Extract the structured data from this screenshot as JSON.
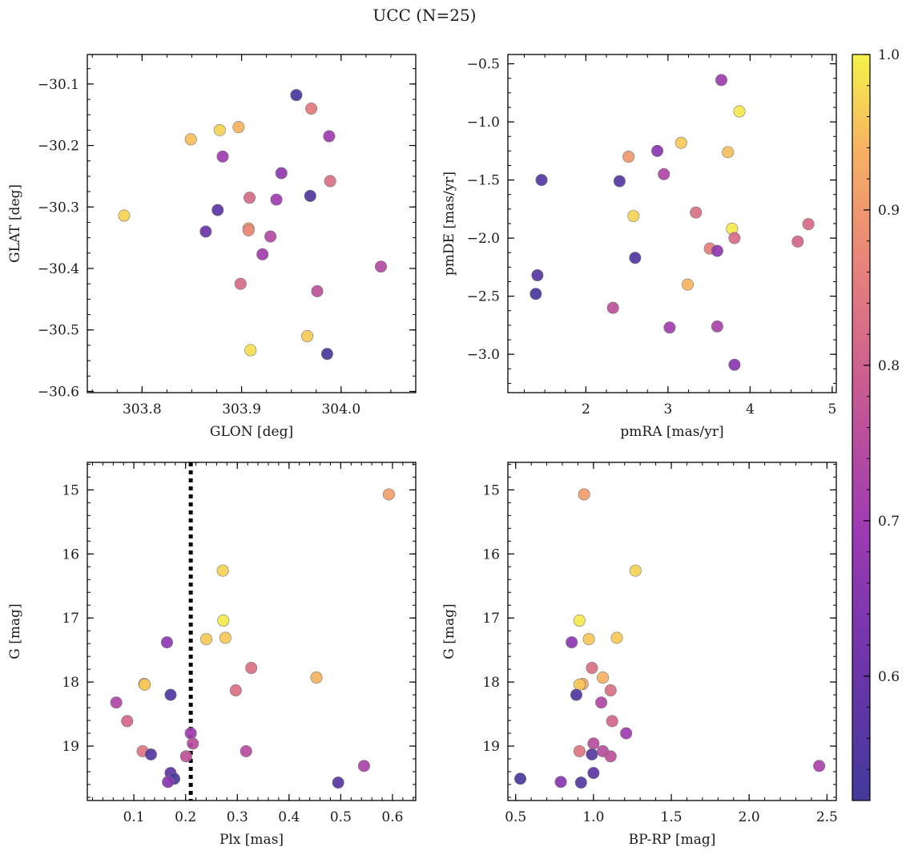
{
  "figure": {
    "title": "UCC (N=25)"
  },
  "colorbar": {
    "vmin": 0.52,
    "vmax": 1.0,
    "ticks": [
      0.6,
      0.7,
      0.8,
      0.9,
      1.0
    ],
    "tick_labels": [
      "0.6",
      "0.7",
      "0.8",
      "0.9",
      "1.0"
    ],
    "colormap": "plasma"
  },
  "chart_data": [
    {
      "type": "scatter",
      "xlabel": "GLON [deg]",
      "ylabel": "GLAT [deg]",
      "xlim": [
        303.745,
        304.075
      ],
      "ylim": [
        -30.602,
        -30.052
      ],
      "y_inverted": false,
      "xticks": [
        303.8,
        303.9,
        304.0
      ],
      "xtick_labels": [
        "303.8",
        "303.9",
        "304.0"
      ],
      "yticks": [
        -30.1,
        -30.2,
        -30.3,
        -30.4,
        -30.5,
        -30.6
      ],
      "ytick_labels": [
        "−30.1",
        "−30.2",
        "−30.3",
        "−30.4",
        "−30.5",
        "−30.6"
      ],
      "x_minor": 0.025,
      "y_minor": 0.025,
      "points": [
        {
          "x": 303.955,
          "y": -30.118,
          "c": 0.53
        },
        {
          "x": 303.97,
          "y": -30.14,
          "c": 0.85
        },
        {
          "x": 303.878,
          "y": -30.175,
          "c": 0.97
        },
        {
          "x": 303.897,
          "y": -30.17,
          "c": 0.94
        },
        {
          "x": 303.849,
          "y": -30.19,
          "c": 0.95
        },
        {
          "x": 303.988,
          "y": -30.185,
          "c": 0.7
        },
        {
          "x": 303.881,
          "y": -30.218,
          "c": 0.7
        },
        {
          "x": 303.94,
          "y": -30.245,
          "c": 0.67
        },
        {
          "x": 303.989,
          "y": -30.258,
          "c": 0.83
        },
        {
          "x": 303.908,
          "y": -30.285,
          "c": 0.82
        },
        {
          "x": 303.935,
          "y": -30.288,
          "c": 0.7
        },
        {
          "x": 303.969,
          "y": -30.282,
          "c": 0.55
        },
        {
          "x": 303.876,
          "y": -30.305,
          "c": 0.57
        },
        {
          "x": 303.782,
          "y": -30.314,
          "c": 0.97
        },
        {
          "x": 303.864,
          "y": -30.34,
          "c": 0.6
        },
        {
          "x": 303.907,
          "y": -30.335,
          "c": 0.9
        },
        {
          "x": 303.907,
          "y": -30.338,
          "c": 0.88
        },
        {
          "x": 303.929,
          "y": -30.348,
          "c": 0.74
        },
        {
          "x": 303.921,
          "y": -30.377,
          "c": 0.71
        },
        {
          "x": 304.04,
          "y": -30.397,
          "c": 0.74
        },
        {
          "x": 303.899,
          "y": -30.425,
          "c": 0.82
        },
        {
          "x": 303.976,
          "y": -30.437,
          "c": 0.76
        },
        {
          "x": 303.966,
          "y": -30.51,
          "c": 0.96
        },
        {
          "x": 303.909,
          "y": -30.533,
          "c": 0.98
        },
        {
          "x": 303.986,
          "y": -30.539,
          "c": 0.54
        }
      ]
    },
    {
      "type": "scatter",
      "xlabel": "pmRA [mas/yr]",
      "ylabel": "pmDE [mas/yr]",
      "xlim": [
        1.05,
        5.05
      ],
      "ylim": [
        -3.33,
        -0.42
      ],
      "y_inverted": false,
      "xticks": [
        2,
        3,
        4,
        5
      ],
      "xtick_labels": [
        "2",
        "3",
        "4",
        "5"
      ],
      "yticks": [
        -0.5,
        -1.0,
        -1.5,
        -2.0,
        -2.5,
        -3.0
      ],
      "ytick_labels": [
        "−0.5",
        "−1.0",
        "−1.5",
        "−2.0",
        "−2.5",
        "−3.0"
      ],
      "x_minor": 0.25,
      "y_minor": 0.125,
      "points": [
        {
          "x": 3.65,
          "y": -0.64,
          "c": 0.7
        },
        {
          "x": 3.87,
          "y": -0.91,
          "c": 0.99
        },
        {
          "x": 3.16,
          "y": -1.18,
          "c": 0.96
        },
        {
          "x": 3.73,
          "y": -1.26,
          "c": 0.95
        },
        {
          "x": 2.87,
          "y": -1.25,
          "c": 0.66
        },
        {
          "x": 2.52,
          "y": -1.3,
          "c": 0.9
        },
        {
          "x": 2.95,
          "y": -1.45,
          "c": 0.73
        },
        {
          "x": 1.46,
          "y": -1.5,
          "c": 0.56
        },
        {
          "x": 2.41,
          "y": -1.51,
          "c": 0.56
        },
        {
          "x": 3.34,
          "y": -1.78,
          "c": 0.83
        },
        {
          "x": 2.58,
          "y": -1.81,
          "c": 0.97
        },
        {
          "x": 4.71,
          "y": -1.88,
          "c": 0.82
        },
        {
          "x": 3.78,
          "y": -1.92,
          "c": 0.99
        },
        {
          "x": 3.81,
          "y": -2.0,
          "c": 0.82
        },
        {
          "x": 4.58,
          "y": -2.03,
          "c": 0.81
        },
        {
          "x": 3.51,
          "y": -2.09,
          "c": 0.86
        },
        {
          "x": 3.6,
          "y": -2.11,
          "c": 0.67
        },
        {
          "x": 2.6,
          "y": -2.17,
          "c": 0.55
        },
        {
          "x": 1.41,
          "y": -2.32,
          "c": 0.56
        },
        {
          "x": 3.24,
          "y": -2.4,
          "c": 0.94
        },
        {
          "x": 1.39,
          "y": -2.48,
          "c": 0.53
        },
        {
          "x": 2.33,
          "y": -2.6,
          "c": 0.76
        },
        {
          "x": 3.02,
          "y": -2.77,
          "c": 0.71
        },
        {
          "x": 3.6,
          "y": -2.76,
          "c": 0.72
        },
        {
          "x": 3.81,
          "y": -3.09,
          "c": 0.66
        }
      ]
    },
    {
      "type": "scatter",
      "xlabel": "Plx [mas]",
      "ylabel": "G [mag]",
      "xlim": [
        0.01,
        0.645
      ],
      "ylim": [
        19.85,
        14.57
      ],
      "y_inverted": true,
      "xticks": [
        0.1,
        0.2,
        0.3,
        0.4,
        0.5,
        0.6
      ],
      "xtick_labels": [
        "0.1",
        "0.2",
        "0.3",
        "0.4",
        "0.5",
        "0.6"
      ],
      "yticks": [
        15,
        16,
        17,
        18,
        19
      ],
      "ytick_labels": [
        "15",
        "16",
        "17",
        "18",
        "19"
      ],
      "x_minor": 0.02,
      "y_minor": 0.2,
      "vline": 0.21,
      "points": [
        {
          "x": 0.593,
          "y": 15.07,
          "c": 0.91
        },
        {
          "x": 0.272,
          "y": 16.26,
          "c": 0.97
        },
        {
          "x": 0.273,
          "y": 17.04,
          "c": 0.99
        },
        {
          "x": 0.24,
          "y": 17.33,
          "c": 0.96
        },
        {
          "x": 0.277,
          "y": 17.31,
          "c": 0.96
        },
        {
          "x": 0.164,
          "y": 17.38,
          "c": 0.67
        },
        {
          "x": 0.327,
          "y": 17.78,
          "c": 0.83
        },
        {
          "x": 0.453,
          "y": 17.93,
          "c": 0.94
        },
        {
          "x": 0.12,
          "y": 18.03,
          "c": 0.92
        },
        {
          "x": 0.121,
          "y": 18.04,
          "c": 0.96
        },
        {
          "x": 0.297,
          "y": 18.13,
          "c": 0.83
        },
        {
          "x": 0.171,
          "y": 18.2,
          "c": 0.55
        },
        {
          "x": 0.066,
          "y": 18.32,
          "c": 0.73
        },
        {
          "x": 0.087,
          "y": 18.61,
          "c": 0.81
        },
        {
          "x": 0.21,
          "y": 18.8,
          "c": 0.7
        },
        {
          "x": 0.214,
          "y": 18.96,
          "c": 0.75
        },
        {
          "x": 0.117,
          "y": 19.08,
          "c": 0.84
        },
        {
          "x": 0.317,
          "y": 19.08,
          "c": 0.75
        },
        {
          "x": 0.133,
          "y": 19.13,
          "c": 0.56
        },
        {
          "x": 0.201,
          "y": 19.16,
          "c": 0.76
        },
        {
          "x": 0.545,
          "y": 19.31,
          "c": 0.72
        },
        {
          "x": 0.171,
          "y": 19.42,
          "c": 0.57
        },
        {
          "x": 0.178,
          "y": 19.51,
          "c": 0.54
        },
        {
          "x": 0.166,
          "y": 19.56,
          "c": 0.66
        },
        {
          "x": 0.495,
          "y": 19.57,
          "c": 0.56
        }
      ]
    },
    {
      "type": "scatter",
      "xlabel": "BP-RP [mag]",
      "ylabel": "G [mag]",
      "xlim": [
        0.45,
        2.56
      ],
      "ylim": [
        19.85,
        14.57
      ],
      "y_inverted": true,
      "xticks": [
        0.5,
        1.0,
        1.5,
        2.0,
        2.5
      ],
      "xtick_labels": [
        "0.5",
        "1.0",
        "1.5",
        "2.0",
        "2.5"
      ],
      "yticks": [
        15,
        16,
        17,
        18,
        19
      ],
      "ytick_labels": [
        "15",
        "16",
        "17",
        "18",
        "19"
      ],
      "x_minor": 0.1,
      "y_minor": 0.2,
      "points": [
        {
          "x": 0.94,
          "y": 15.07,
          "c": 0.91
        },
        {
          "x": 1.27,
          "y": 16.26,
          "c": 0.97
        },
        {
          "x": 0.91,
          "y": 17.04,
          "c": 0.99
        },
        {
          "x": 0.97,
          "y": 17.33,
          "c": 0.96
        },
        {
          "x": 1.15,
          "y": 17.31,
          "c": 0.96
        },
        {
          "x": 0.86,
          "y": 17.38,
          "c": 0.67
        },
        {
          "x": 0.99,
          "y": 17.78,
          "c": 0.83
        },
        {
          "x": 1.06,
          "y": 17.93,
          "c": 0.94
        },
        {
          "x": 0.93,
          "y": 18.03,
          "c": 0.92
        },
        {
          "x": 0.91,
          "y": 18.04,
          "c": 0.96
        },
        {
          "x": 1.11,
          "y": 18.13,
          "c": 0.83
        },
        {
          "x": 0.89,
          "y": 18.2,
          "c": 0.55
        },
        {
          "x": 1.05,
          "y": 18.32,
          "c": 0.73
        },
        {
          "x": 1.12,
          "y": 18.61,
          "c": 0.81
        },
        {
          "x": 1.21,
          "y": 18.8,
          "c": 0.7
        },
        {
          "x": 1.0,
          "y": 18.96,
          "c": 0.75
        },
        {
          "x": 0.91,
          "y": 19.08,
          "c": 0.84
        },
        {
          "x": 1.06,
          "y": 19.08,
          "c": 0.75
        },
        {
          "x": 0.99,
          "y": 19.13,
          "c": 0.56
        },
        {
          "x": 1.11,
          "y": 19.16,
          "c": 0.76
        },
        {
          "x": 2.45,
          "y": 19.31,
          "c": 0.72
        },
        {
          "x": 1.0,
          "y": 19.42,
          "c": 0.57
        },
        {
          "x": 0.53,
          "y": 19.51,
          "c": 0.54
        },
        {
          "x": 0.79,
          "y": 19.56,
          "c": 0.66
        },
        {
          "x": 0.92,
          "y": 19.57,
          "c": 0.56
        }
      ]
    }
  ]
}
